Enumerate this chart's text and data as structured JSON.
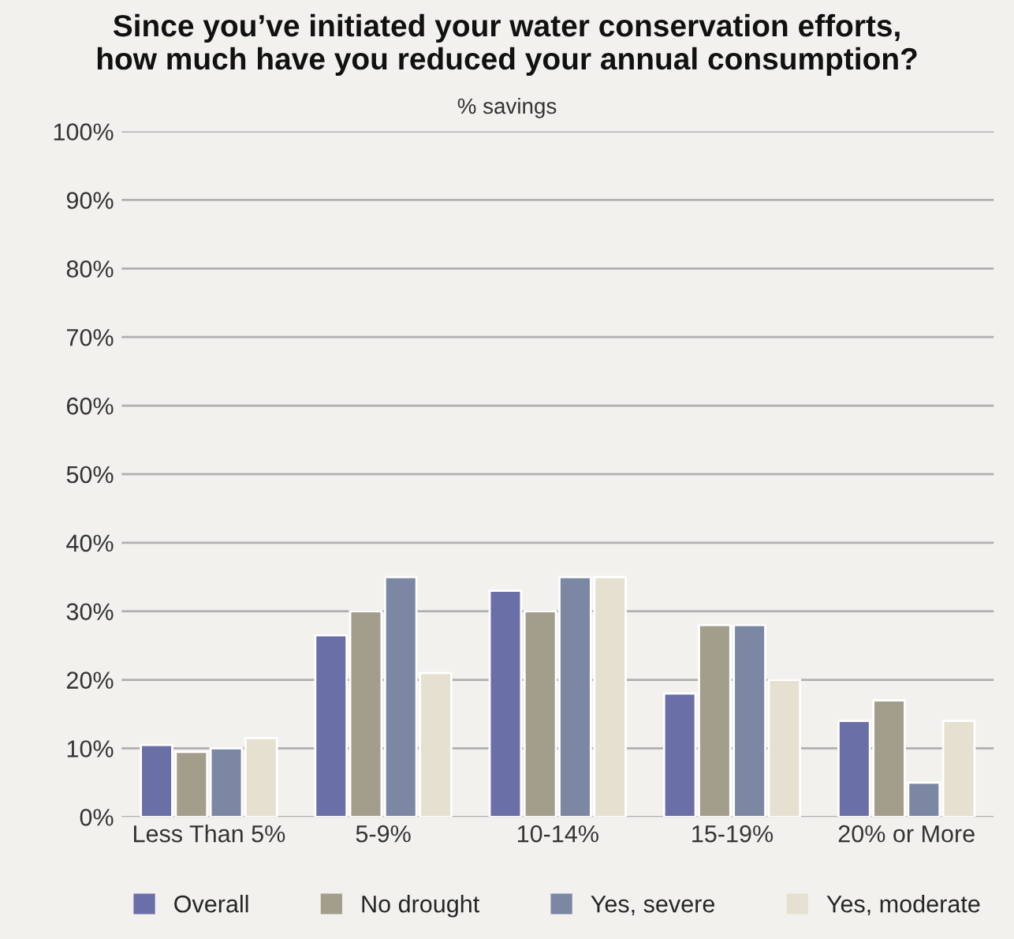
{
  "chart_data": {
    "type": "bar",
    "title": "Since you’ve initiated your water conservation efforts,\nhow much have you reduced your annual consumption?",
    "subtitle": "% savings",
    "categories": [
      "Less Than 5%",
      "5-9%",
      "10-14%",
      "15-19%",
      "20% or More"
    ],
    "series": [
      {
        "name": "Overall",
        "color": "#6b6fa8",
        "values": [
          10.5,
          26.5,
          33,
          18,
          14
        ]
      },
      {
        "name": "No drought",
        "color": "#a39d8c",
        "values": [
          9.5,
          30,
          30,
          28,
          17
        ]
      },
      {
        "name": "Yes, severe",
        "color": "#7b87a3",
        "values": [
          10,
          35,
          35,
          28,
          5
        ]
      },
      {
        "name": "Yes, moderate",
        "color": "#e6e0d0",
        "values": [
          11.5,
          21,
          35,
          20,
          14
        ]
      }
    ],
    "ylim": [
      0,
      100
    ],
    "yticks": [
      {
        "value": 0,
        "label": "0%"
      },
      {
        "value": 10,
        "label": "10%"
      },
      {
        "value": 20,
        "label": "20%"
      },
      {
        "value": 30,
        "label": "30%"
      },
      {
        "value": 40,
        "label": "40%"
      },
      {
        "value": 50,
        "label": "50%"
      },
      {
        "value": 60,
        "label": "60%"
      },
      {
        "value": 70,
        "label": "70%"
      },
      {
        "value": 80,
        "label": "80%"
      },
      {
        "value": 90,
        "label": "90%"
      },
      {
        "value": 100,
        "label": "100%"
      }
    ],
    "grid": "y",
    "legend": "bottom"
  }
}
